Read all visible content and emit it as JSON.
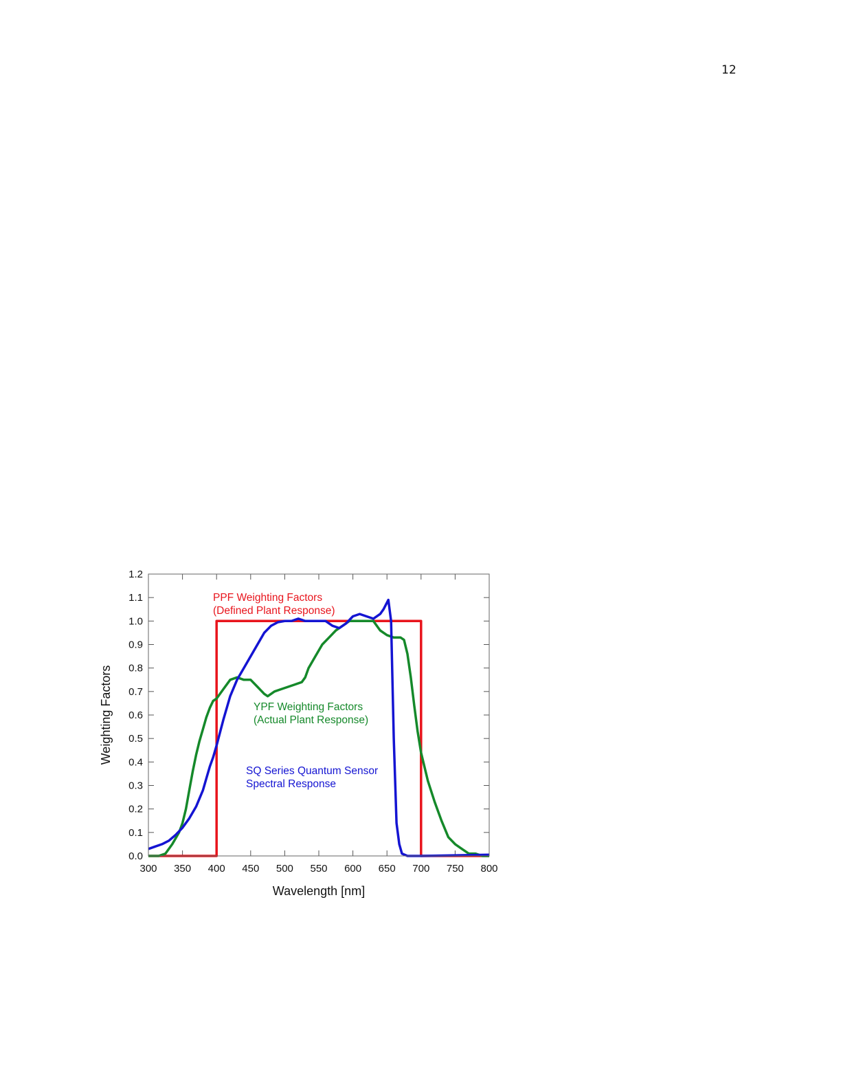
{
  "page": {
    "number": "12"
  },
  "chart_data": {
    "type": "line",
    "title": "",
    "xlabel": "Wavelength [nm]",
    "ylabel": "Weighting Factors",
    "xlim": [
      300,
      800
    ],
    "ylim": [
      0.0,
      1.2
    ],
    "xticks": [
      "300",
      "350",
      "400",
      "450",
      "500",
      "550",
      "600",
      "650",
      "700",
      "750",
      "800"
    ],
    "yticks": [
      "0.0",
      "0.1",
      "0.2",
      "0.3",
      "0.4",
      "0.5",
      "0.6",
      "0.7",
      "0.8",
      "0.9",
      "1.0",
      "1.1",
      "1.2"
    ],
    "grid": false,
    "annotations": {
      "ppf": [
        "PPF Weighting Factors",
        "(Defined Plant Response)"
      ],
      "ypf": [
        "YPF Weighting Factors",
        "(Actual Plant Response)"
      ],
      "sq": [
        "SQ Series Quantum Sensor",
        "Spectral Response"
      ]
    },
    "series": [
      {
        "key": "ppf",
        "color": "#e8141c",
        "points": [
          [
            300,
            0
          ],
          [
            400,
            0
          ],
          [
            400,
            1.0
          ],
          [
            700,
            1.0
          ],
          [
            700,
            0
          ],
          [
            800,
            0
          ]
        ]
      },
      {
        "key": "ypf",
        "color": "#15892a",
        "points": [
          [
            300,
            0
          ],
          [
            315,
            0
          ],
          [
            325,
            0.01
          ],
          [
            335,
            0.05
          ],
          [
            345,
            0.1
          ],
          [
            350,
            0.14
          ],
          [
            355,
            0.2
          ],
          [
            360,
            0.28
          ],
          [
            365,
            0.36
          ],
          [
            370,
            0.43
          ],
          [
            375,
            0.49
          ],
          [
            380,
            0.54
          ],
          [
            385,
            0.59
          ],
          [
            390,
            0.63
          ],
          [
            395,
            0.66
          ],
          [
            400,
            0.67
          ],
          [
            410,
            0.71
          ],
          [
            420,
            0.75
          ],
          [
            430,
            0.76
          ],
          [
            440,
            0.75
          ],
          [
            450,
            0.75
          ],
          [
            460,
            0.72
          ],
          [
            470,
            0.69
          ],
          [
            475,
            0.68
          ],
          [
            485,
            0.7
          ],
          [
            495,
            0.71
          ],
          [
            505,
            0.72
          ],
          [
            515,
            0.73
          ],
          [
            525,
            0.74
          ],
          [
            530,
            0.76
          ],
          [
            535,
            0.8
          ],
          [
            545,
            0.85
          ],
          [
            555,
            0.9
          ],
          [
            565,
            0.93
          ],
          [
            575,
            0.96
          ],
          [
            585,
            0.98
          ],
          [
            595,
            1.0
          ],
          [
            605,
            1.0
          ],
          [
            615,
            1.0
          ],
          [
            630,
            1.0
          ],
          [
            640,
            0.96
          ],
          [
            650,
            0.94
          ],
          [
            660,
            0.93
          ],
          [
            670,
            0.93
          ],
          [
            675,
            0.92
          ],
          [
            680,
            0.86
          ],
          [
            685,
            0.76
          ],
          [
            690,
            0.64
          ],
          [
            695,
            0.53
          ],
          [
            700,
            0.44
          ],
          [
            710,
            0.32
          ],
          [
            720,
            0.23
          ],
          [
            730,
            0.15
          ],
          [
            740,
            0.08
          ],
          [
            750,
            0.05
          ],
          [
            760,
            0.03
          ],
          [
            770,
            0.01
          ],
          [
            780,
            0.01
          ],
          [
            790,
            0
          ],
          [
            800,
            0
          ]
        ]
      },
      {
        "key": "sq",
        "color": "#1414d2",
        "points": [
          [
            300,
            0.03
          ],
          [
            310,
            0.04
          ],
          [
            320,
            0.05
          ],
          [
            330,
            0.065
          ],
          [
            340,
            0.09
          ],
          [
            350,
            0.12
          ],
          [
            360,
            0.16
          ],
          [
            370,
            0.21
          ],
          [
            380,
            0.28
          ],
          [
            385,
            0.33
          ],
          [
            390,
            0.38
          ],
          [
            395,
            0.42
          ],
          [
            400,
            0.47
          ],
          [
            410,
            0.58
          ],
          [
            420,
            0.68
          ],
          [
            430,
            0.75
          ],
          [
            440,
            0.8
          ],
          [
            450,
            0.85
          ],
          [
            460,
            0.9
          ],
          [
            470,
            0.95
          ],
          [
            480,
            0.98
          ],
          [
            490,
            0.995
          ],
          [
            500,
            1.0
          ],
          [
            510,
            1.0
          ],
          [
            520,
            1.01
          ],
          [
            530,
            1.0
          ],
          [
            540,
            1.0
          ],
          [
            550,
            1.0
          ],
          [
            560,
            1.0
          ],
          [
            570,
            0.98
          ],
          [
            580,
            0.97
          ],
          [
            590,
            0.99
          ],
          [
            600,
            1.02
          ],
          [
            610,
            1.03
          ],
          [
            620,
            1.02
          ],
          [
            630,
            1.01
          ],
          [
            640,
            1.03
          ],
          [
            645,
            1.05
          ],
          [
            652,
            1.09
          ],
          [
            656,
            1.0
          ],
          [
            660,
            0.5
          ],
          [
            664,
            0.14
          ],
          [
            668,
            0.05
          ],
          [
            672,
            0.01
          ],
          [
            680,
            0
          ],
          [
            700,
            0
          ],
          [
            800,
            0.005
          ]
        ]
      }
    ]
  }
}
